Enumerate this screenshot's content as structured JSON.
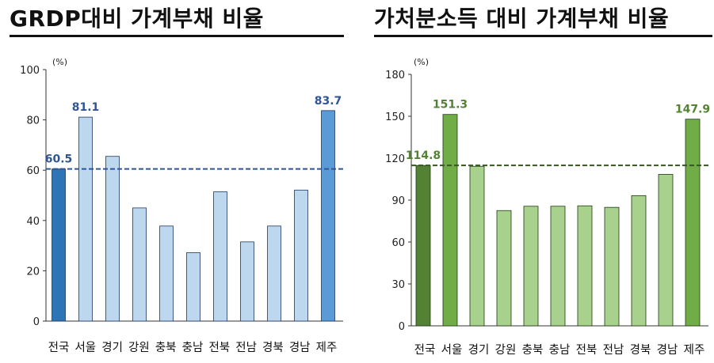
{
  "chart_data": [
    {
      "type": "bar",
      "title": "GRDP대비 가계부채 비율",
      "unit": "(%)",
      "categories": [
        "전국",
        "서울",
        "경기",
        "강원",
        "충북",
        "충남",
        "전북",
        "전남",
        "경북",
        "경남",
        "제주"
      ],
      "values": [
        60.5,
        81.1,
        65.5,
        45.0,
        37.8,
        27.2,
        51.4,
        31.5,
        37.8,
        52.1,
        83.7
      ],
      "ylim": [
        0,
        100
      ],
      "yticks": [
        "0",
        "20",
        "40",
        "60",
        "80",
        "100"
      ],
      "reference_line": 60.5,
      "data_labels": [
        {
          "index": 0,
          "text": "60.5"
        },
        {
          "index": 1,
          "text": "81.1"
        },
        {
          "index": 10,
          "text": "83.7"
        }
      ],
      "colors": {
        "base": "#bdd7ee",
        "highlight": "#5b9bd5",
        "national": "#2e75b6",
        "edge": "#1f3864",
        "label": "#2f5597",
        "line": "#2f5597"
      }
    },
    {
      "type": "bar",
      "title": "가처분소득 대비 가계부채 비율",
      "unit": "(%)",
      "categories": [
        "전국",
        "서울",
        "경기",
        "강원",
        "충북",
        "충남",
        "전북",
        "전남",
        "경북",
        "경남",
        "제주"
      ],
      "values": [
        114.8,
        151.3,
        114.2,
        82.5,
        85.6,
        85.6,
        85.9,
        84.8,
        93.2,
        108.4,
        147.9
      ],
      "ylim": [
        0,
        180
      ],
      "yticks": [
        "0",
        "30",
        "60",
        "90",
        "120",
        "150",
        "180"
      ],
      "reference_line": 114.8,
      "data_labels": [
        {
          "index": 0,
          "text": "114.8"
        },
        {
          "index": 1,
          "text": "151.3"
        },
        {
          "index": 10,
          "text": "147.9"
        }
      ],
      "colors": {
        "base": "#a9d18e",
        "highlight": "#70ad47",
        "national": "#548235",
        "edge": "#1e3a0f",
        "label": "#548235",
        "line": "#375623"
      }
    }
  ]
}
